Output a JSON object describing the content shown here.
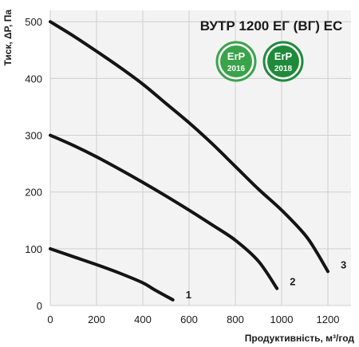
{
  "chart_data": {
    "type": "line",
    "title": "ВУТР 1200 ЕГ (ВГ) ЕС",
    "xlabel": "Продуктивність, м³/год",
    "ylabel": "Тиск, ΔР, Па",
    "xlim": [
      0,
      1300
    ],
    "ylim": [
      0,
      520
    ],
    "xticks": [
      "0",
      "200",
      "400",
      "600",
      "800",
      "1000",
      "1200"
    ],
    "yticks": [
      "0",
      "100",
      "200",
      "300",
      "400",
      "500"
    ],
    "grid": true,
    "series": [
      {
        "name": "1",
        "x": [
          0,
          100,
          200,
          300,
          400,
          450,
          530
        ],
        "y": [
          100,
          86,
          72,
          57,
          40,
          28,
          10
        ]
      },
      {
        "name": "2",
        "x": [
          0,
          100,
          200,
          300,
          400,
          500,
          600,
          700,
          800,
          900,
          980
        ],
        "y": [
          300,
          282,
          262,
          240,
          217,
          193,
          168,
          142,
          115,
          78,
          30
        ]
      },
      {
        "name": "3",
        "x": [
          0,
          100,
          200,
          300,
          400,
          500,
          600,
          700,
          800,
          900,
          1000,
          1100,
          1150,
          1200
        ],
        "y": [
          500,
          475,
          448,
          420,
          390,
          356,
          322,
          285,
          245,
          205,
          168,
          125,
          95,
          60
        ]
      }
    ],
    "badges": [
      {
        "label": "ErP",
        "year": "2016",
        "color": "#3aa34a"
      },
      {
        "label": "ErP",
        "year": "2018",
        "color": "#1f8a3a"
      }
    ]
  }
}
